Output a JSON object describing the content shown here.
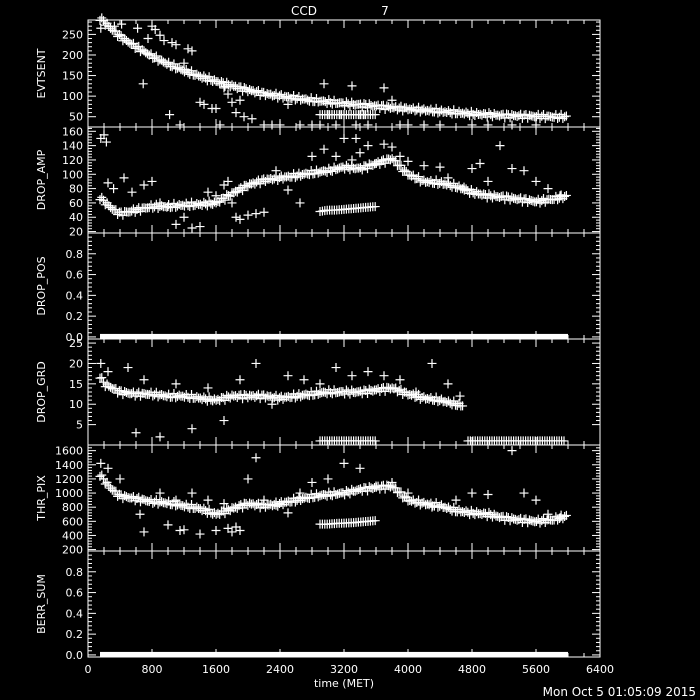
{
  "header": {
    "title_prefix": "CCD",
    "title_number": "7",
    "timestamp": "Mon Oct  5 01:05:09 2015"
  },
  "colors": {
    "background": "#000000",
    "foreground": "#ffffff"
  },
  "chart_data": [
    {
      "type": "scatter",
      "ylabel": "EVTSENT",
      "ylim": [
        25,
        285
      ],
      "yticks": [
        "50",
        "100",
        "150",
        "200",
        "250"
      ],
      "series": [
        {
          "x": [
            150,
            300,
            450,
            600,
            800,
            1000,
            1200,
            1400,
            1600,
            1800,
            2000,
            2200,
            2400,
            2600,
            2800,
            3000,
            3200,
            3400,
            3600,
            3800,
            4000,
            4200,
            4400,
            4600,
            4800,
            5000,
            5200,
            5400,
            5600,
            5800,
            6000
          ],
          "y": [
            290,
            262,
            238,
            220,
            197,
            178,
            162,
            148,
            136,
            125,
            115,
            106,
            100,
            95,
            90,
            86,
            82,
            79,
            76,
            72,
            69,
            66,
            63,
            60,
            57,
            55,
            53,
            52,
            51,
            50,
            50
          ],
          "outliers_x": [
            160,
            330,
            420,
            620,
            690,
            750,
            800,
            840,
            900,
            950,
            1020,
            1050,
            1100,
            1150,
            1200,
            1250,
            1300,
            1400,
            1450,
            1550,
            1600,
            1650,
            1700,
            1750,
            1800,
            1850,
            1900,
            1950,
            2050,
            2200,
            2300,
            2400,
            2500,
            2650,
            2800,
            2900,
            2950,
            3000,
            3050,
            3100,
            3150,
            3200,
            3300,
            3350,
            3400,
            3450,
            3500,
            3700,
            3800,
            3900,
            4000,
            4200,
            4400,
            4800,
            5000,
            5300,
            5600
          ],
          "outliers_y": [
            265,
            270,
            275,
            265,
            130,
            240,
            270,
            262,
            248,
            235,
            55,
            230,
            225,
            30,
            180,
            215,
            210,
            85,
            80,
            70,
            70,
            30,
            120,
            105,
            85,
            60,
            90,
            50,
            45,
            30,
            30,
            30,
            80,
            30,
            30,
            30,
            130,
            55,
            55,
            30,
            55,
            55,
            125,
            30,
            55,
            55,
            30,
            120,
            90,
            30,
            30,
            30,
            30,
            30,
            30,
            30,
            30
          ],
          "low_x": [
            2900,
            3000,
            3100,
            3200,
            3300,
            3400,
            3500,
            3600
          ],
          "low_y": [
            55,
            55,
            55,
            55,
            55,
            55,
            55,
            55
          ]
        }
      ]
    },
    {
      "type": "scatter",
      "ylabel": "DROP_AMP",
      "ylim": [
        18,
        166
      ],
      "yticks": [
        "20",
        "40",
        "60",
        "80",
        "100",
        "120",
        "140",
        "160"
      ],
      "series": [
        {
          "x": [
            150,
            200,
            300,
            400,
            600,
            800,
            1000,
            1200,
            1400,
            1600,
            1800,
            2000,
            2200,
            2400,
            2600,
            2800,
            3000,
            3200,
            3400,
            3600,
            3800,
            4000,
            4200,
            4400,
            4600,
            4800,
            5000,
            5200,
            5400,
            5600,
            5800,
            6000
          ],
          "y": [
            68,
            62,
            52,
            45,
            50,
            55,
            55,
            57,
            58,
            60,
            73,
            85,
            92,
            95,
            98,
            102,
            105,
            110,
            108,
            115,
            122,
            100,
            90,
            88,
            83,
            75,
            70,
            68,
            65,
            62,
            65,
            70
          ],
          "outliers_x": [
            160,
            200,
            230,
            250,
            320,
            450,
            550,
            700,
            800,
            900,
            1000,
            1100,
            1200,
            1300,
            1400,
            1500,
            1600,
            1700,
            1750,
            1800,
            1850,
            1900,
            2000,
            2100,
            2200,
            2350,
            2500,
            2650,
            2800,
            2950,
            3100,
            3200,
            3300,
            3350,
            3400,
            3500,
            3600,
            3700,
            3800,
            3900,
            4000,
            4200,
            4400,
            4500,
            4700,
            4800,
            4900,
            5000,
            5150,
            5300,
            5450,
            5600,
            5750,
            5900
          ],
          "outliers_y": [
            150,
            155,
            145,
            88,
            80,
            95,
            75,
            85,
            90,
            60,
            55,
            30,
            40,
            25,
            27,
            75,
            70,
            85,
            90,
            60,
            40,
            37,
            43,
            45,
            47,
            105,
            78,
            60,
            125,
            135,
            125,
            150,
            120,
            150,
            130,
            140,
            115,
            142,
            138,
            125,
            118,
            112,
            110,
            95,
            82,
            108,
            115,
            90,
            140,
            108,
            105,
            90,
            80,
            70
          ],
          "low_x": [
            2900,
            3000,
            3100,
            3200,
            3300,
            3400,
            3500,
            3600
          ],
          "low_y": [
            48,
            50,
            50,
            51,
            52,
            53,
            54,
            55
          ]
        }
      ]
    },
    {
      "type": "scatter",
      "ylabel": "DROP_POS",
      "ylim": [
        -0.02,
        1.0
      ],
      "yticks": [
        "0.0",
        "0.2",
        "0.4",
        "0.6",
        "0.8"
      ],
      "series": [
        {
          "x_range": [
            150,
            6000
          ],
          "value": 0.0
        }
      ]
    },
    {
      "type": "scatter",
      "ylabel": "DROP_GRD",
      "ylim": [
        0,
        26
      ],
      "yticks": [
        "5",
        "10",
        "15",
        "20",
        "25"
      ],
      "series": [
        {
          "x": [
            150,
            200,
            300,
            400,
            600,
            800,
            1000,
            1200,
            1400,
            1600,
            1800,
            2000,
            2200,
            2400,
            2600,
            2800,
            3000,
            3200,
            3400,
            3600,
            3800,
            4000,
            4200,
            4400,
            4600,
            4700
          ],
          "y": [
            17,
            15,
            14,
            13,
            12.5,
            12.5,
            12,
            12,
            11.5,
            11,
            12,
            12,
            12,
            11.5,
            12,
            12.5,
            13,
            13,
            13,
            13.5,
            14,
            12.5,
            11.5,
            11,
            10,
            9.5
          ],
          "outliers_x": [
            160,
            250,
            500,
            600,
            700,
            900,
            1100,
            1300,
            1500,
            1700,
            1900,
            2100,
            2300,
            2500,
            2700,
            2900,
            3100,
            3300,
            3500,
            3700,
            3900,
            4100,
            4300,
            4500,
            4650
          ],
          "outliers_y": [
            20,
            18,
            19,
            3,
            16,
            2,
            15,
            4,
            14,
            6,
            16,
            20,
            10,
            17,
            16,
            15,
            19,
            17,
            18,
            17,
            16,
            13,
            20,
            15,
            12
          ],
          "low_x": [
            2900,
            3000,
            3100,
            3200,
            3300,
            3400,
            3500,
            3600,
            4750,
            4900,
            5050,
            5200,
            5350,
            5500,
            5650,
            5800,
            5950
          ],
          "low_y": [
            1,
            1,
            1,
            1,
            1,
            1,
            1,
            1,
            1,
            1,
            1,
            1,
            1,
            1,
            1,
            1,
            1
          ]
        }
      ]
    },
    {
      "type": "scatter",
      "ylabel": "THR_PIX",
      "ylim": [
        180,
        1680
      ],
      "yticks": [
        "200",
        "400",
        "600",
        "800",
        "1000",
        "1200",
        "1400",
        "1600"
      ],
      "series": [
        {
          "x": [
            150,
            200,
            300,
            400,
            600,
            800,
            1000,
            1200,
            1400,
            1600,
            1800,
            2000,
            2200,
            2400,
            2600,
            2800,
            3000,
            3200,
            3400,
            3600,
            3800,
            4000,
            4200,
            4400,
            4600,
            4800,
            5000,
            5200,
            5400,
            5600,
            5800,
            6000
          ],
          "y": [
            1270,
            1180,
            1050,
            960,
            920,
            880,
            860,
            820,
            780,
            700,
            780,
            850,
            820,
            850,
            900,
            950,
            980,
            1000,
            1050,
            1080,
            1100,
            900,
            850,
            820,
            750,
            720,
            700,
            650,
            620,
            600,
            620,
            680
          ],
          "outliers_x": [
            160,
            250,
            400,
            650,
            700,
            900,
            1000,
            1100,
            1150,
            1200,
            1300,
            1400,
            1500,
            1600,
            1700,
            1750,
            1800,
            1850,
            1900,
            2000,
            2100,
            2200,
            2350,
            2500,
            2650,
            2800,
            3000,
            3200,
            3400,
            3600,
            3800,
            4000,
            4300,
            4600,
            4800,
            5000,
            5300,
            5450,
            5600,
            5750,
            5900
          ],
          "outliers_y": [
            1420,
            1350,
            1200,
            700,
            450,
            1000,
            550,
            900,
            470,
            480,
            1000,
            420,
            900,
            470,
            850,
            500,
            450,
            520,
            470,
            1200,
            1500,
            900,
            830,
            720,
            1000,
            1150,
            1200,
            1420,
            1350,
            1100,
            1150,
            1000,
            800,
            900,
            1000,
            980,
            1600,
            1000,
            900,
            700,
            650
          ],
          "low_x": [
            2900,
            3000,
            3100,
            3200,
            3300,
            3400,
            3500,
            3600
          ],
          "low_y": [
            560,
            560,
            570,
            575,
            580,
            590,
            600,
            610
          ]
        }
      ]
    },
    {
      "type": "scatter",
      "ylabel": "BERR_SUM",
      "ylim": [
        -0.02,
        1.0
      ],
      "yticks": [
        "0.0",
        "0.2",
        "0.4",
        "0.6",
        "0.8"
      ],
      "xlabel": "time (MET)",
      "xlim": [
        0,
        6400
      ],
      "xticks": [
        "0",
        "800",
        "1600",
        "2400",
        "3200",
        "4000",
        "4800",
        "5600",
        "6400"
      ],
      "series": [
        {
          "x_range": [
            150,
            6000
          ],
          "value": 0.0
        }
      ]
    }
  ]
}
